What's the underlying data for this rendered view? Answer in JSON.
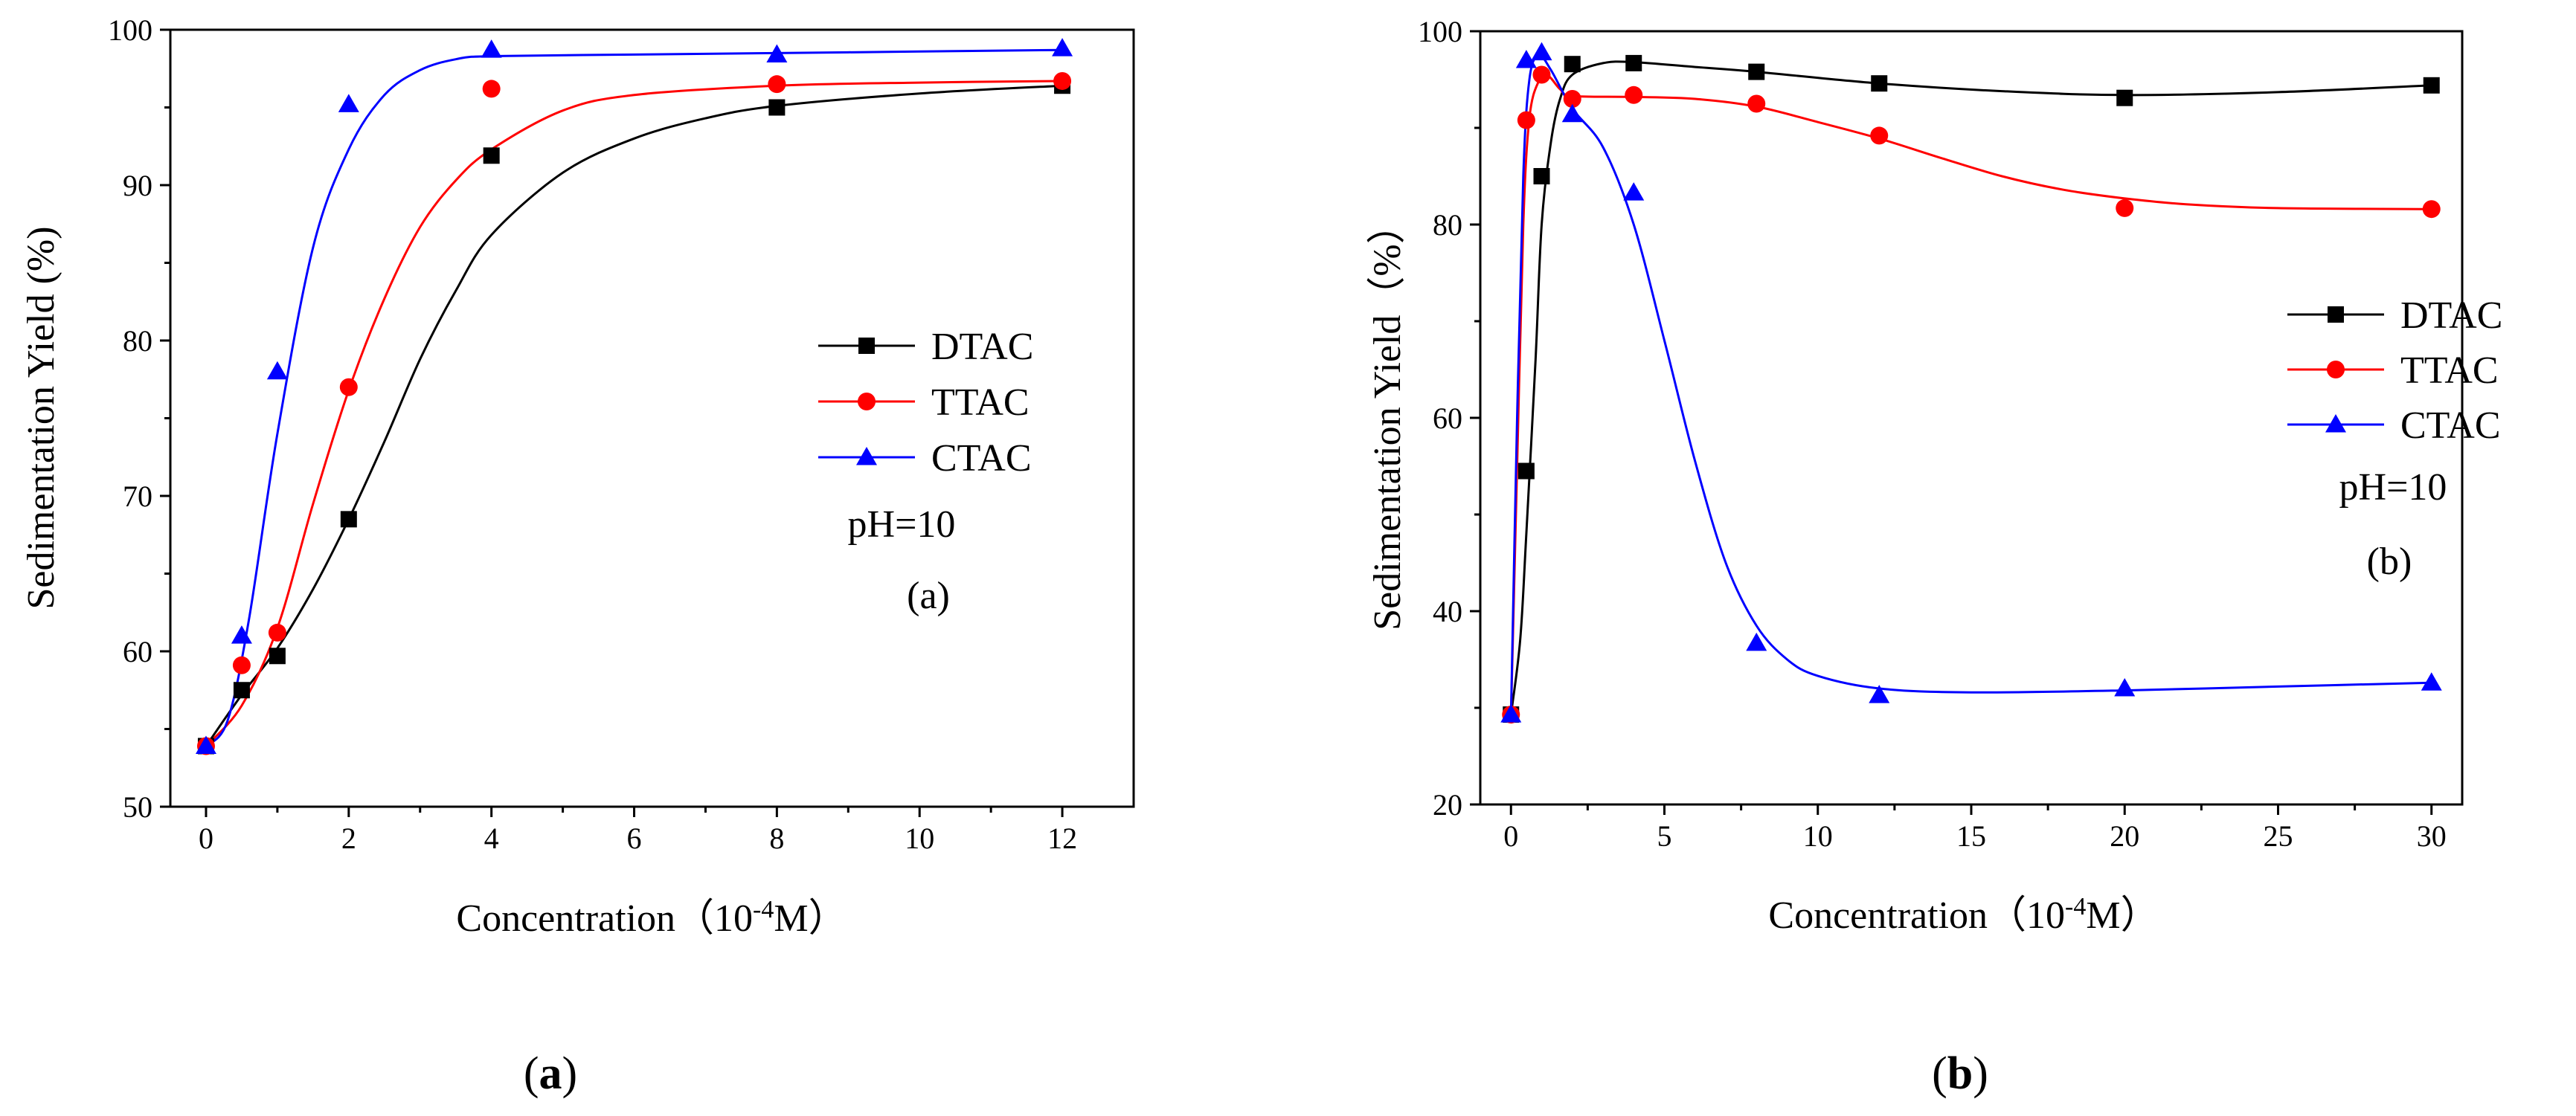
{
  "figure": {
    "caption_a": {
      "open": "(",
      "letter": "a",
      "close": ")"
    },
    "caption_b": {
      "open": "(",
      "letter": "b",
      "close": ")"
    }
  },
  "colors": {
    "DTAC": "#000000",
    "TTAC": "#ff0000",
    "CTAC": "#0000ff"
  },
  "chart_data": [
    {
      "type": "line",
      "title": "",
      "xlabel": {
        "main": "Concentration（10",
        "sup": "-4",
        "tail": "M）"
      },
      "ylabel": "Sedimentation Yield (%)",
      "xlim": [
        -0.5,
        13
      ],
      "ylim": [
        50,
        100
      ],
      "xticks": [
        0,
        2,
        4,
        6,
        8,
        10,
        12
      ],
      "yticks": [
        50,
        60,
        70,
        80,
        90,
        100
      ],
      "xminor": [
        1,
        3,
        5,
        7,
        9,
        11
      ],
      "yminor": [
        55,
        65,
        75,
        85,
        95
      ],
      "legend_position": "center-right",
      "annotations": [
        "pH=10",
        "(a)"
      ],
      "series": [
        {
          "name": "DTAC",
          "marker": "square",
          "x": [
            0,
            0.5,
            1,
            2,
            4,
            8,
            12
          ],
          "y": [
            53.9,
            57.5,
            59.7,
            68.5,
            91.9,
            95.0,
            96.4
          ],
          "fit": [
            [
              0,
              53.9
            ],
            [
              0.5,
              57.2
            ],
            [
              1,
              60.2
            ],
            [
              1.5,
              64.0
            ],
            [
              2,
              68.5
            ],
            [
              2.5,
              73.5
            ],
            [
              3,
              78.8
            ],
            [
              3.5,
              83.2
            ],
            [
              4,
              86.8
            ],
            [
              5,
              90.8
            ],
            [
              6,
              93.0
            ],
            [
              7,
              94.3
            ],
            [
              8,
              95.1
            ],
            [
              10,
              95.9
            ],
            [
              12,
              96.4
            ]
          ]
        },
        {
          "name": "TTAC",
          "marker": "circle",
          "x": [
            0,
            0.5,
            1,
            2,
            4,
            8,
            12
          ],
          "y": [
            53.9,
            59.1,
            61.2,
            77.0,
            96.2,
            96.5,
            96.7
          ],
          "fit": [
            [
              0,
              53.9
            ],
            [
              0.5,
              56.5
            ],
            [
              1,
              61.5
            ],
            [
              1.5,
              69.5
            ],
            [
              2,
              76.8
            ],
            [
              2.5,
              82.7
            ],
            [
              3,
              87.3
            ],
            [
              3.5,
              90.3
            ],
            [
              4,
              92.3
            ],
            [
              5,
              94.8
            ],
            [
              6,
              95.8
            ],
            [
              8,
              96.4
            ],
            [
              10,
              96.6
            ],
            [
              12,
              96.7
            ]
          ]
        },
        {
          "name": "CTAC",
          "marker": "triangle",
          "x": [
            0,
            0.5,
            1,
            2,
            4,
            8,
            12
          ],
          "y": [
            53.9,
            61.0,
            78.0,
            95.2,
            98.7,
            98.4,
            98.8
          ],
          "fit": [
            [
              0,
              53.9
            ],
            [
              0.3,
              55.5
            ],
            [
              0.6,
              62.0
            ],
            [
              1,
              74.0
            ],
            [
              1.5,
              86.0
            ],
            [
              2,
              92.3
            ],
            [
              2.5,
              95.8
            ],
            [
              3,
              97.4
            ],
            [
              3.5,
              98.1
            ],
            [
              4,
              98.3
            ],
            [
              6,
              98.4
            ],
            [
              8,
              98.5
            ],
            [
              10,
              98.6
            ],
            [
              12,
              98.7
            ]
          ]
        }
      ]
    },
    {
      "type": "line",
      "title": "",
      "xlabel": {
        "main": "Concentration（10",
        "sup": "-4",
        "tail": "M）"
      },
      "ylabel": "Sedimentation Yield（%）",
      "xlim": [
        -1,
        31
      ],
      "ylim": [
        20,
        100
      ],
      "xticks": [
        0,
        5,
        10,
        15,
        20,
        25,
        30
      ],
      "yticks": [
        20,
        40,
        60,
        80,
        100
      ],
      "xminor": [
        2.5,
        7.5,
        12.5,
        17.5,
        22.5,
        27.5
      ],
      "yminor": [
        30,
        50,
        70,
        90
      ],
      "legend_position": "right",
      "annotations": [
        "pH=10",
        "(b)"
      ],
      "series": [
        {
          "name": "DTAC",
          "marker": "square",
          "x": [
            0,
            0.5,
            1,
            2,
            4,
            8,
            12,
            20,
            30
          ],
          "y": [
            29.3,
            54.5,
            85.0,
            96.6,
            96.7,
            95.8,
            94.6,
            93.1,
            94.4
          ],
          "fit": [
            [
              0,
              29.3
            ],
            [
              0.3,
              37.0
            ],
            [
              0.5,
              48.0
            ],
            [
              0.8,
              66.0
            ],
            [
              1,
              80.0
            ],
            [
              1.3,
              88.5
            ],
            [
              1.6,
              93.0
            ],
            [
              2,
              95.5
            ],
            [
              3,
              96.7
            ],
            [
              4,
              96.8
            ],
            [
              6,
              96.3
            ],
            [
              8,
              95.8
            ],
            [
              12,
              94.6
            ],
            [
              16,
              93.8
            ],
            [
              20,
              93.4
            ],
            [
              25,
              93.7
            ],
            [
              30,
              94.4
            ]
          ]
        },
        {
          "name": "TTAC",
          "marker": "circle",
          "x": [
            0,
            0.5,
            1,
            2,
            4,
            8,
            12,
            20,
            30
          ],
          "y": [
            29.3,
            90.8,
            95.5,
            93.0,
            93.4,
            92.5,
            89.2,
            81.7,
            81.6
          ],
          "fit": [
            [
              0,
              29.3
            ],
            [
              0.2,
              55.0
            ],
            [
              0.4,
              80.0
            ],
            [
              0.6,
              91.0
            ],
            [
              0.9,
              94.8
            ],
            [
              1.2,
              95.4
            ],
            [
              1.6,
              94.0
            ],
            [
              2,
              93.3
            ],
            [
              4,
              93.2
            ],
            [
              6,
              93.0
            ],
            [
              8,
              92.2
            ],
            [
              10,
              90.6
            ],
            [
              12,
              88.9
            ],
            [
              14,
              86.9
            ],
            [
              16,
              85.0
            ],
            [
              18,
              83.6
            ],
            [
              20,
              82.7
            ],
            [
              22,
              82.1
            ],
            [
              25,
              81.7
            ],
            [
              30,
              81.6
            ]
          ]
        },
        {
          "name": "CTAC",
          "marker": "triangle",
          "x": [
            0,
            0.5,
            1,
            2,
            4,
            8,
            12,
            20,
            30
          ],
          "y": [
            29.3,
            97.0,
            97.8,
            91.4,
            83.3,
            36.7,
            31.3,
            32.0,
            32.6
          ],
          "fit": [
            [
              0,
              29.3
            ],
            [
              0.2,
              60.0
            ],
            [
              0.4,
              85.0
            ],
            [
              0.6,
              95.0
            ],
            [
              0.9,
              97.5
            ],
            [
              1.3,
              96.0
            ],
            [
              2,
              92.0
            ],
            [
              3,
              88.0
            ],
            [
              4,
              80.0
            ],
            [
              5,
              68.0
            ],
            [
              6,
              55.5
            ],
            [
              7,
              45.0
            ],
            [
              8,
              38.5
            ],
            [
              9,
              35.0
            ],
            [
              10,
              33.3
            ],
            [
              12,
              32.0
            ],
            [
              15,
              31.6
            ],
            [
              20,
              31.8
            ],
            [
              25,
              32.2
            ],
            [
              30,
              32.6
            ]
          ]
        }
      ]
    }
  ]
}
